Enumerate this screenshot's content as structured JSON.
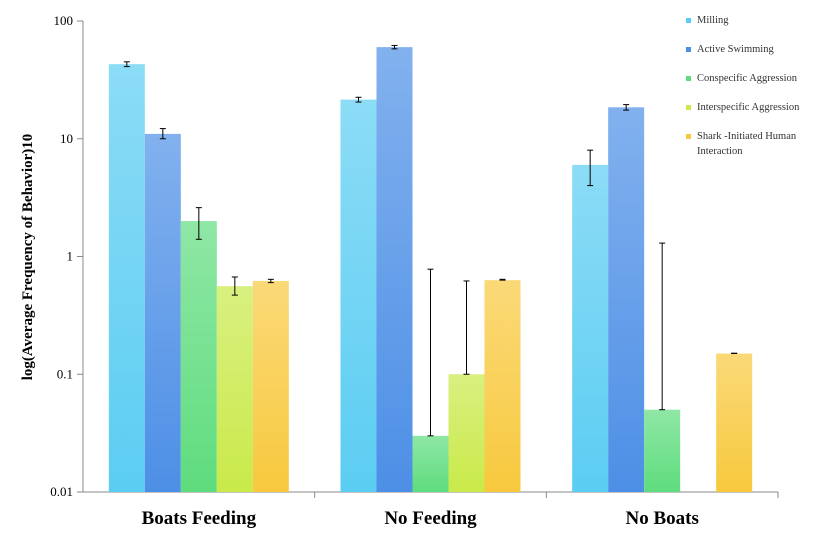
{
  "chart_data": {
    "type": "bar",
    "title": "",
    "xlabel": "",
    "ylabel": "log(Average Frequency of Behavior)10",
    "yscale": "log",
    "ylim": [
      0.01,
      100
    ],
    "yticks": [
      "0.01",
      "0.1",
      "1",
      "10",
      "100"
    ],
    "categories": [
      "Boats Feeding",
      "No Feeding",
      "No Boats"
    ],
    "legend_position": "top-right",
    "series": [
      {
        "name": "Milling",
        "color": "#5bcdf2",
        "values": [
          43,
          21.5,
          6
        ],
        "errors": [
          [
            41,
            45
          ],
          [
            20.5,
            22.5
          ],
          [
            4.0,
            8.0
          ]
        ]
      },
      {
        "name": "Active Swimming",
        "color": "#4d8fe6",
        "values": [
          11,
          60,
          18.5
        ],
        "errors": [
          [
            10,
            12.2
          ],
          [
            58,
            62
          ],
          [
            17.5,
            19.5
          ]
        ]
      },
      {
        "name": "Conspecific Aggression",
        "color": "#5fdc7e",
        "values": [
          2.0,
          0.03,
          0.05
        ],
        "errors": [
          [
            1.4,
            2.6
          ],
          [
            0.03,
            0.78
          ],
          [
            0.05,
            1.3
          ]
        ]
      },
      {
        "name": "Interspecific Aggression",
        "color": "#c9ea4a",
        "values": [
          0.56,
          0.1,
          null
        ],
        "errors": [
          [
            0.47,
            0.67
          ],
          [
            0.1,
            0.62
          ],
          null
        ]
      },
      {
        "name": "Shark -Initiated Human Interaction",
        "color": "#f8c93e",
        "values": [
          0.62,
          0.63,
          0.15
        ],
        "errors": [
          [
            0.6,
            0.64
          ],
          [
            0.63,
            0.64
          ],
          [
            0.15,
            0.151
          ]
        ]
      }
    ]
  }
}
